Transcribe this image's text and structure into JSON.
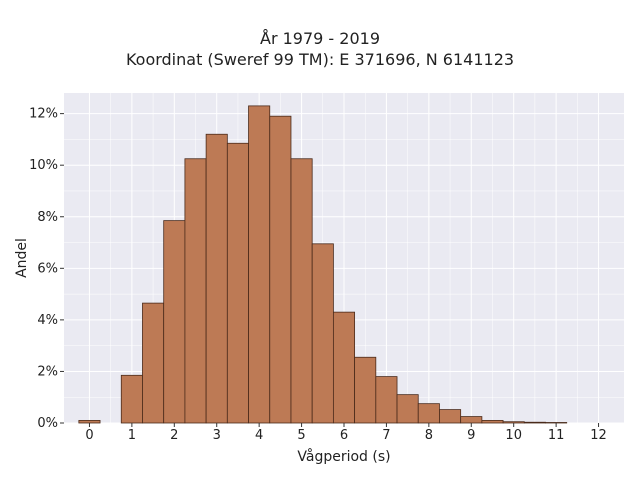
{
  "chart_data": {
    "type": "bar",
    "title": "År 1979 - 2019",
    "subtitle": "Koordinat (Sweref 99 TM): E 371696, N 6141123",
    "xlabel": "Vågperiod (s)",
    "ylabel": "Andel",
    "bin_width": 0.5,
    "xlim": [
      -0.6,
      12.6
    ],
    "ylim": [
      0,
      12.8
    ],
    "x_ticks": [
      0,
      1,
      2,
      3,
      4,
      5,
      6,
      7,
      8,
      9,
      10,
      11,
      12
    ],
    "x_tick_labels": [
      "0",
      "1",
      "2",
      "3",
      "4",
      "5",
      "6",
      "7",
      "8",
      "9",
      "10",
      "11",
      "12"
    ],
    "y_ticks": [
      0,
      2,
      4,
      6,
      8,
      10,
      12
    ],
    "y_tick_labels": [
      "0%",
      "2%",
      "4%",
      "6%",
      "8%",
      "10%",
      "12%"
    ],
    "grid": true,
    "bar_color": "#bd7a55",
    "bar_edge_color": "#4a2a1a",
    "plot_background": "#eaeaf2",
    "bins": [
      {
        "x": 0.0,
        "value": 0.1
      },
      {
        "x": 0.5,
        "value": 0.0
      },
      {
        "x": 1.0,
        "value": 1.85
      },
      {
        "x": 1.5,
        "value": 4.65
      },
      {
        "x": 2.0,
        "value": 7.85
      },
      {
        "x": 2.5,
        "value": 10.25
      },
      {
        "x": 3.0,
        "value": 11.2
      },
      {
        "x": 3.5,
        "value": 10.85
      },
      {
        "x": 4.0,
        "value": 12.3
      },
      {
        "x": 4.5,
        "value": 11.9
      },
      {
        "x": 5.0,
        "value": 10.25
      },
      {
        "x": 5.5,
        "value": 6.95
      },
      {
        "x": 6.0,
        "value": 4.3
      },
      {
        "x": 6.5,
        "value": 2.55
      },
      {
        "x": 7.0,
        "value": 1.8
      },
      {
        "x": 7.5,
        "value": 1.1
      },
      {
        "x": 8.0,
        "value": 0.75
      },
      {
        "x": 8.5,
        "value": 0.52
      },
      {
        "x": 9.0,
        "value": 0.25
      },
      {
        "x": 9.5,
        "value": 0.1
      },
      {
        "x": 10.0,
        "value": 0.05
      },
      {
        "x": 10.5,
        "value": 0.03
      },
      {
        "x": 11.0,
        "value": 0.02
      },
      {
        "x": 11.5,
        "value": 0.0
      }
    ]
  }
}
